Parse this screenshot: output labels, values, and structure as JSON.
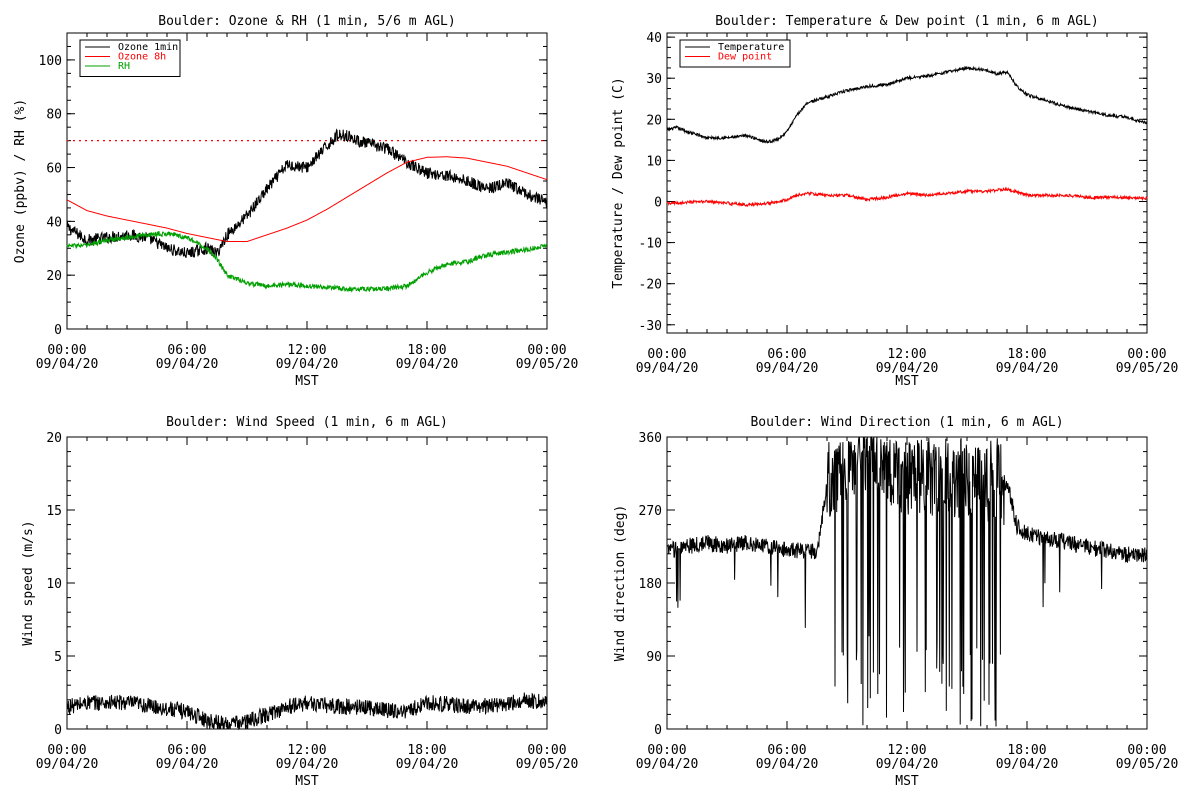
{
  "chart_data": [
    {
      "type": "line",
      "title": "Boulder: Ozone & RH (1 min, 5/6 m AGL)",
      "xlabel": "MST",
      "ylabel": "Ozone (ppbv) / RH (%)",
      "ylim": [
        0,
        110
      ],
      "yticks": [
        0,
        20,
        40,
        60,
        80,
        100
      ],
      "xlim": [
        0,
        24
      ],
      "xticks": [
        0,
        6,
        12,
        18,
        24
      ],
      "xtick_labels": [
        [
          "00:00",
          "09/04/20"
        ],
        [
          "06:00",
          "09/04/20"
        ],
        [
          "12:00",
          "09/04/20"
        ],
        [
          "18:00",
          "09/04/20"
        ],
        [
          "00:00",
          "09/05/20"
        ]
      ],
      "x_units": "hours since 00:00 09/04/20 MST",
      "grid": false,
      "legend_position": "top-left",
      "reference_line": {
        "y": 70,
        "color": "#ff0000",
        "style": "dotted"
      },
      "series": [
        {
          "name": "Ozone 1min",
          "color": "#000000",
          "noise": 2.2,
          "x": [
            0,
            1,
            2,
            3,
            4,
            5,
            6,
            7,
            7.5,
            8,
            9,
            10,
            11,
            12,
            13,
            13.5,
            14,
            14.5,
            15,
            16,
            17,
            18,
            19,
            20,
            21,
            22,
            23,
            24
          ],
          "y": [
            38,
            33,
            34,
            35,
            34,
            30,
            28,
            30,
            28,
            35,
            42,
            52,
            61,
            60,
            68,
            72,
            72,
            70,
            69,
            67,
            62,
            58,
            57,
            55,
            52,
            54,
            50,
            47
          ]
        },
        {
          "name": "Ozone 8h",
          "color": "#ff0000",
          "noise": 0,
          "x": [
            0,
            1,
            2,
            3,
            4,
            5,
            6,
            7,
            8,
            9,
            10,
            11,
            12,
            13,
            14,
            15,
            16,
            17,
            18,
            19,
            20,
            21,
            22,
            23,
            24
          ],
          "y": [
            48,
            44,
            42,
            40.5,
            39,
            37.5,
            35.5,
            34,
            32.5,
            32.5,
            35,
            37.5,
            40.5,
            44.5,
            49,
            53.5,
            58,
            62,
            63.8,
            64,
            63.5,
            62,
            60.5,
            58,
            55.5
          ]
        },
        {
          "name": "RH",
          "color": "#00a000",
          "noise": 0.9,
          "x": [
            0,
            1,
            2,
            3,
            4,
            5,
            6,
            7,
            7.5,
            8,
            9,
            10,
            11,
            12,
            13,
            14,
            15,
            16,
            17,
            18,
            19,
            20,
            21,
            22,
            23,
            24
          ],
          "y": [
            31,
            31,
            33,
            34,
            35,
            35.5,
            34,
            30,
            26,
            20,
            17,
            16,
            16.5,
            16,
            15.5,
            15,
            14.8,
            15,
            16,
            21,
            24,
            25,
            27.5,
            28.5,
            29.5,
            31
          ]
        }
      ]
    },
    {
      "type": "line",
      "title": "Boulder: Temperature & Dew point (1 min, 6 m AGL)",
      "xlabel": "MST",
      "ylabel": "Temperature / Dew point (C)",
      "ylim": [
        -32,
        41
      ],
      "yticks": [
        -30,
        -20,
        -10,
        0,
        10,
        20,
        30,
        40
      ],
      "xlim": [
        0,
        24
      ],
      "xticks": [
        0,
        6,
        12,
        18,
        24
      ],
      "xtick_labels": [
        [
          "00:00",
          "09/04/20"
        ],
        [
          "06:00",
          "09/04/20"
        ],
        [
          "12:00",
          "09/04/20"
        ],
        [
          "18:00",
          "09/04/20"
        ],
        [
          "00:00",
          "09/05/20"
        ]
      ],
      "x_units": "hours since 00:00 09/04/20 MST",
      "grid": false,
      "legend_position": "top-left",
      "series": [
        {
          "name": "Temperature",
          "color": "#000000",
          "noise": 0.35,
          "x": [
            0,
            0.5,
            1,
            2,
            3,
            4,
            5,
            5.5,
            6,
            6.5,
            7,
            8,
            9,
            10,
            11,
            12,
            13,
            14,
            15,
            16,
            16.5,
            17,
            17.5,
            18,
            19,
            20,
            21,
            22,
            23,
            24
          ],
          "y": [
            17.5,
            18,
            17,
            15.5,
            15.5,
            16,
            14.5,
            15,
            17,
            21,
            24,
            25.5,
            27,
            28,
            28.5,
            30,
            30.5,
            31.5,
            32.5,
            32,
            31,
            31.5,
            28,
            26,
            24.5,
            23,
            22,
            21,
            20.5,
            19
          ]
        },
        {
          "name": "Dew point",
          "color": "#ff0000",
          "noise": 0.35,
          "x": [
            0,
            2,
            4,
            5,
            6,
            6.5,
            7,
            8,
            9,
            10,
            11,
            12,
            13,
            14,
            15,
            16,
            17,
            18,
            19,
            20,
            21,
            22,
            23,
            24
          ],
          "y": [
            -0.5,
            0,
            -0.8,
            -0.5,
            0.5,
            1.5,
            2,
            1.5,
            1.5,
            0.5,
            1,
            2,
            1.5,
            2,
            2.5,
            2.5,
            3,
            1.5,
            1.5,
            1.5,
            1,
            1,
            1,
            0.8
          ]
        }
      ]
    },
    {
      "type": "line",
      "title": "Boulder: Wind Speed (1 min, 6 m AGL)",
      "xlabel": "MST",
      "ylabel": "Wind speed (m/s)",
      "ylim": [
        0,
        20
      ],
      "yticks": [
        0,
        5,
        10,
        15,
        20
      ],
      "xlim": [
        0,
        24
      ],
      "xticks": [
        0,
        6,
        12,
        18,
        24
      ],
      "xtick_labels": [
        [
          "00:00",
          "09/04/20"
        ],
        [
          "06:00",
          "09/04/20"
        ],
        [
          "12:00",
          "09/04/20"
        ],
        [
          "18:00",
          "09/04/20"
        ],
        [
          "00:00",
          "09/05/20"
        ]
      ],
      "x_units": "hours since 00:00 09/04/20 MST",
      "grid": false,
      "series": [
        {
          "name": "",
          "color": "#000000",
          "noise": 0.55,
          "x": [
            0,
            1,
            2,
            3,
            4,
            5,
            6,
            7,
            8,
            9,
            10,
            11,
            12,
            13,
            14,
            15,
            16,
            17,
            18,
            19,
            20,
            21,
            22,
            23,
            24
          ],
          "y": [
            1.5,
            1.8,
            1.8,
            1.8,
            1.6,
            1.4,
            1.2,
            0.6,
            0.3,
            0.5,
            1,
            1.5,
            1.8,
            1.6,
            1.5,
            1.5,
            1.3,
            1.2,
            1.8,
            1.7,
            1.5,
            1.6,
            1.7,
            2,
            1.8
          ]
        }
      ]
    },
    {
      "type": "line",
      "title": "Boulder: Wind Direction (1 min, 6 m AGL)",
      "xlabel": "MST",
      "ylabel": "Wind direction (deg)",
      "ylim": [
        0,
        360
      ],
      "yticks": [
        0,
        90,
        180,
        270,
        360
      ],
      "xlim": [
        0,
        24
      ],
      "xticks": [
        0,
        6,
        12,
        18,
        24
      ],
      "xtick_labels": [
        [
          "00:00",
          "09/04/20"
        ],
        [
          "06:00",
          "09/04/20"
        ],
        [
          "12:00",
          "09/04/20"
        ],
        [
          "18:00",
          "09/04/20"
        ],
        [
          "00:00",
          "09/05/20"
        ]
      ],
      "x_units": "hours since 00:00 09/04/20 MST",
      "grid": false,
      "series": [
        {
          "name": "",
          "color": "#000000",
          "noise": 10,
          "x": [
            0,
            1,
            2,
            3,
            4,
            5,
            6,
            7,
            7.5,
            8,
            9,
            10,
            11,
            12,
            13,
            14,
            15,
            16,
            17,
            17.5,
            18,
            19,
            20,
            21,
            22,
            23,
            24
          ],
          "y": [
            220,
            225,
            230,
            225,
            230,
            225,
            220,
            220,
            218,
            300,
            320,
            330,
            320,
            300,
            310,
            300,
            305,
            300,
            305,
            250,
            240,
            235,
            230,
            225,
            220,
            215,
            215
          ]
        }
      ],
      "erratic_direction_period": [
        8,
        16.8
      ]
    }
  ]
}
